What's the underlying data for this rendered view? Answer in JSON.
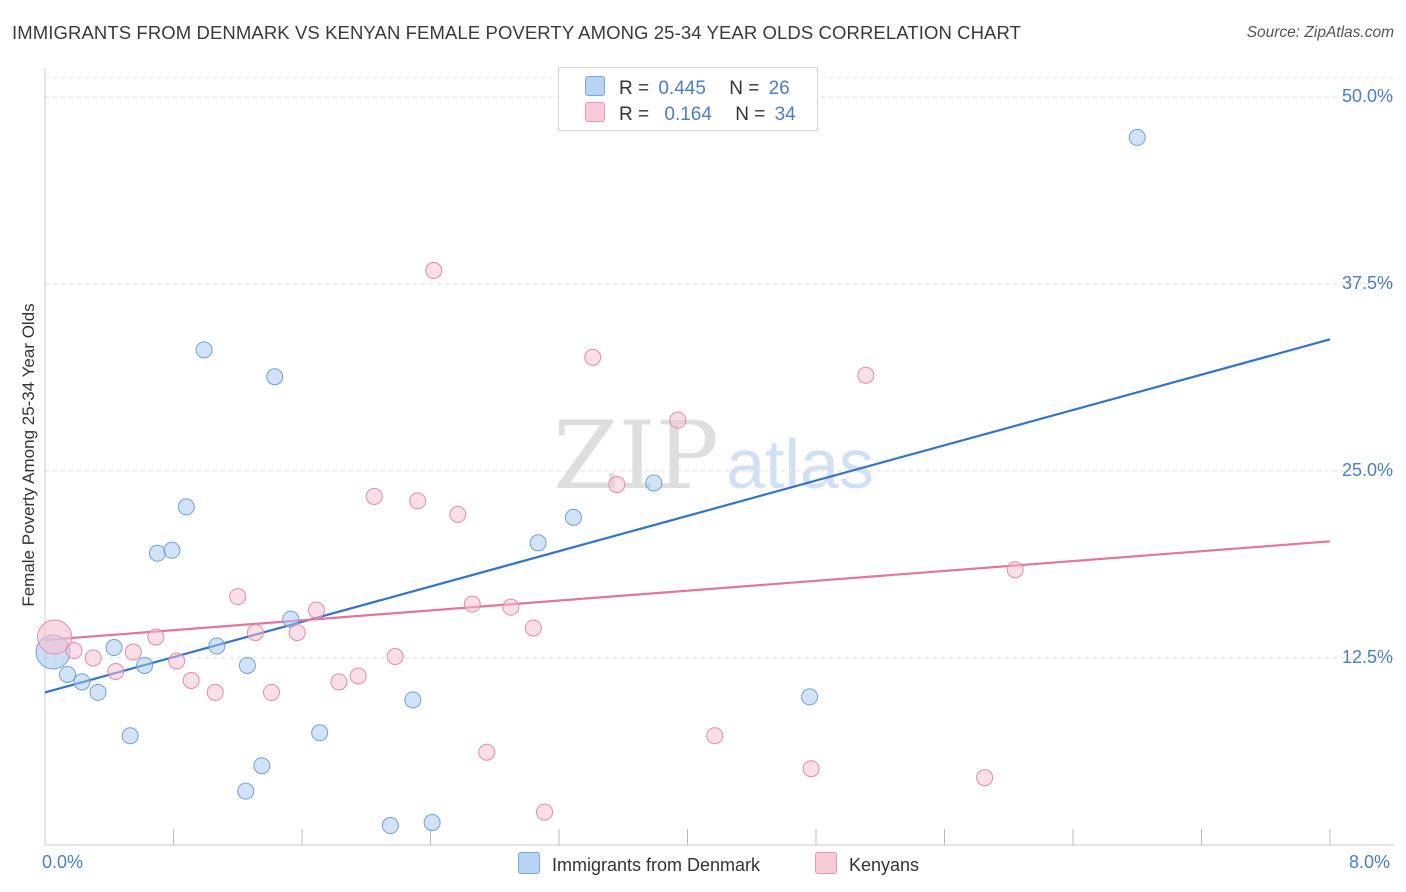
{
  "chart_data": {
    "type": "scatter",
    "title": "IMMIGRANTS FROM DENMARK VS KENYAN FEMALE POVERTY AMONG 25-34 YEAR OLDS CORRELATION CHART",
    "source": "Source: ZipAtlas.com",
    "xlabel": "",
    "ylabel": "Female Poverty Among 25-34 Year Olds",
    "xlim": [
      0,
      8.0
    ],
    "ylim": [
      0,
      50.0
    ],
    "x_tick_labels": [
      "0.0%",
      "8.0%"
    ],
    "y_ticks": [
      12.5,
      25.0,
      37.5,
      50.0
    ],
    "y_tick_labels": [
      "12.5%",
      "25.0%",
      "37.5%",
      "50.0%"
    ],
    "grid": true,
    "watermark": {
      "zip": "ZIP",
      "atlas": "atlas"
    },
    "series": [
      {
        "name": "Immigrants from Denmark",
        "color": "#a8c8f0",
        "edge": "#6fa0dc",
        "line_color": "#2f74d0",
        "r_label": "R =",
        "r_value": "0.445",
        "n_label": "N =",
        "n_value": "26",
        "trend": [
          [
            0,
            10.2
          ],
          [
            8.0,
            33.8
          ]
        ],
        "points": [
          [
            0.05,
            12.9,
            "big"
          ],
          [
            0.14,
            11.4
          ],
          [
            0.23,
            10.9
          ],
          [
            0.33,
            10.2
          ],
          [
            0.43,
            13.2
          ],
          [
            0.53,
            7.3
          ],
          [
            0.62,
            12.0
          ],
          [
            0.7,
            19.5
          ],
          [
            0.79,
            19.7
          ],
          [
            0.88,
            22.6
          ],
          [
            0.99,
            33.1
          ],
          [
            1.07,
            13.3
          ],
          [
            1.25,
            3.6
          ],
          [
            1.26,
            12.0
          ],
          [
            1.35,
            5.3
          ],
          [
            1.43,
            31.3
          ],
          [
            1.53,
            15.1
          ],
          [
            1.71,
            7.5
          ],
          [
            2.15,
            1.3
          ],
          [
            2.29,
            9.7
          ],
          [
            2.41,
            1.5
          ],
          [
            3.07,
            20.2
          ],
          [
            3.29,
            21.9
          ],
          [
            3.79,
            24.2
          ],
          [
            4.76,
            9.9
          ],
          [
            6.8,
            47.3
          ]
        ]
      },
      {
        "name": "Kenyans",
        "color": "#f6bfd1",
        "edge": "#e58aaa",
        "line_color": "#e4749c",
        "r_label": "R =",
        "r_value": "0.164",
        "n_label": "N =",
        "n_value": "34",
        "trend": [
          [
            0,
            13.7
          ],
          [
            8.0,
            20.3
          ]
        ],
        "points": [
          [
            0.06,
            13.9,
            "big"
          ],
          [
            0.18,
            13.0
          ],
          [
            0.3,
            12.5
          ],
          [
            0.44,
            11.6
          ],
          [
            0.55,
            12.9
          ],
          [
            0.69,
            13.9
          ],
          [
            0.82,
            12.3
          ],
          [
            0.91,
            11.0
          ],
          [
            1.06,
            10.2
          ],
          [
            1.2,
            16.6
          ],
          [
            1.31,
            14.2
          ],
          [
            1.41,
            10.2
          ],
          [
            1.57,
            14.2
          ],
          [
            1.69,
            15.7
          ],
          [
            1.83,
            10.9
          ],
          [
            1.95,
            11.3
          ],
          [
            2.05,
            23.3
          ],
          [
            2.18,
            12.6
          ],
          [
            2.32,
            23.0
          ],
          [
            2.42,
            38.4
          ],
          [
            2.57,
            22.1
          ],
          [
            2.66,
            16.1
          ],
          [
            2.75,
            6.2
          ],
          [
            2.9,
            15.9
          ],
          [
            3.04,
            14.5
          ],
          [
            3.11,
            2.2
          ],
          [
            3.41,
            32.6
          ],
          [
            3.56,
            24.1
          ],
          [
            3.94,
            28.4
          ],
          [
            4.17,
            7.3
          ],
          [
            4.77,
            5.1
          ],
          [
            5.11,
            31.4
          ],
          [
            5.85,
            4.5
          ],
          [
            6.04,
            18.4
          ]
        ]
      }
    ]
  }
}
